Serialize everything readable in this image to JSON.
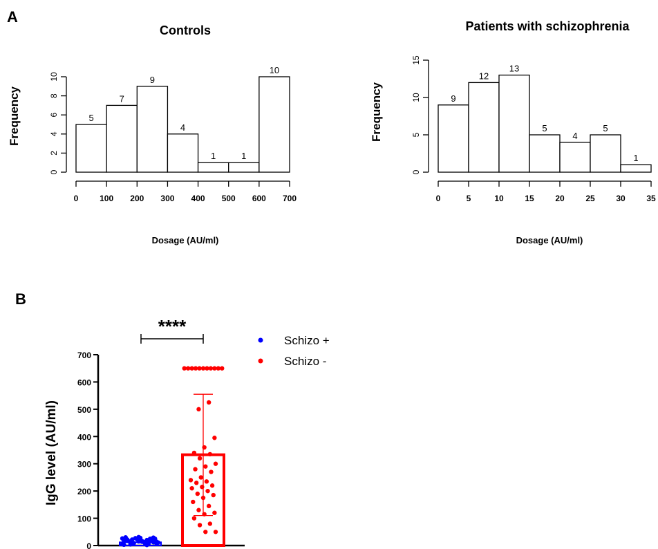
{
  "labels": {
    "panel_a": "A",
    "panel_b": "B"
  },
  "chart_data": [
    {
      "type": "histogram",
      "title": "Controls",
      "xlabel": "Dosage (AU/ml)",
      "ylabel": "Frequency",
      "bins": [
        [
          0,
          100
        ],
        [
          100,
          200
        ],
        [
          200,
          300
        ],
        [
          300,
          400
        ],
        [
          400,
          500
        ],
        [
          500,
          600
        ],
        [
          600,
          700
        ]
      ],
      "values": [
        5,
        7,
        9,
        4,
        1,
        1,
        10
      ],
      "data_labels": [
        "5",
        "7",
        "9",
        "4",
        "1",
        "1",
        "10"
      ],
      "xlim": [
        0,
        700
      ],
      "ylim": [
        0,
        10
      ],
      "xticks": [
        0,
        100,
        200,
        300,
        400,
        500,
        600,
        700
      ],
      "xtick_labels": [
        "0",
        "100",
        "200",
        "300",
        "400",
        "500",
        "600",
        "700"
      ],
      "yticks": [
        0,
        2,
        4,
        6,
        8,
        10
      ],
      "ytick_labels": [
        "0",
        "2",
        "4",
        "6",
        "8",
        "10"
      ]
    },
    {
      "type": "histogram",
      "title": "Patients with schizophrenia",
      "xlabel": "Dosage (AU/ml)",
      "ylabel": "Frequency",
      "bins": [
        [
          0,
          5
        ],
        [
          5,
          10
        ],
        [
          10,
          15
        ],
        [
          15,
          20
        ],
        [
          20,
          25
        ],
        [
          25,
          30
        ],
        [
          30,
          35
        ]
      ],
      "values": [
        9,
        12,
        13,
        5,
        4,
        5,
        1
      ],
      "data_labels": [
        "9",
        "12",
        "13",
        "5",
        "4",
        "5",
        "1"
      ],
      "xlim": [
        0,
        35
      ],
      "ylim": [
        0,
        15
      ],
      "xticks": [
        0,
        5,
        10,
        15,
        20,
        25,
        30,
        35
      ],
      "xtick_labels": [
        "0",
        "5",
        "10",
        "15",
        "20",
        "25",
        "30",
        "35"
      ],
      "yticks": [
        0,
        5,
        10,
        15
      ],
      "ytick_labels": [
        "0",
        "5",
        "10",
        "15"
      ]
    },
    {
      "type": "bar",
      "ylabel": "IgG level (AU/ml)",
      "ylim": [
        0,
        700
      ],
      "yticks": [
        0,
        100,
        200,
        300,
        400,
        500,
        600,
        700
      ],
      "ytick_labels": [
        "0",
        "100",
        "200",
        "300",
        "400",
        "500",
        "600",
        "700"
      ],
      "significance": "****",
      "series": [
        {
          "name": "Schizo +",
          "color": "#0000ff",
          "mean": 12,
          "points": [
            5,
            8,
            10,
            12,
            15,
            18,
            20,
            22,
            25,
            28,
            30,
            6,
            9,
            14,
            17,
            21,
            24,
            27,
            11,
            13,
            16,
            19,
            23,
            26,
            7,
            4,
            29,
            31,
            3,
            2,
            12,
            15,
            18,
            20,
            10,
            8,
            6,
            14,
            22,
            25
          ]
        },
        {
          "name": "Schizo -",
          "color": "#ff0000",
          "mean": 333,
          "sd_upper": 555,
          "sd_lower": 110,
          "points": [
            650,
            650,
            650,
            650,
            650,
            650,
            650,
            650,
            650,
            650,
            650,
            525,
            500,
            395,
            360,
            340,
            335,
            320,
            300,
            290,
            280,
            270,
            250,
            240,
            235,
            230,
            220,
            215,
            210,
            200,
            190,
            185,
            175,
            160,
            145,
            130,
            120,
            115,
            100,
            80,
            75,
            50,
            50
          ]
        }
      ]
    }
  ]
}
